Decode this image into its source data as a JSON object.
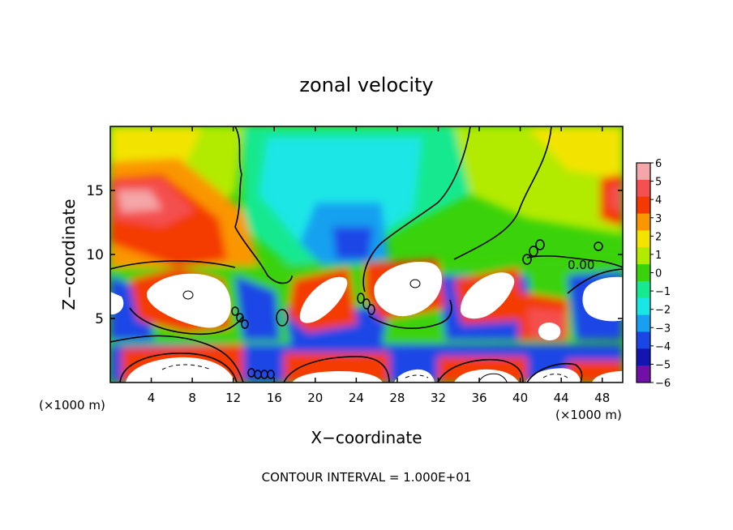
{
  "chart_data": {
    "type": "heatmap",
    "title": "zonal velocity",
    "xlabel": "X−coordinate",
    "ylabel": "Z−coordinate",
    "x_unit_left": "(×1000 m)",
    "x_unit_right": "(×1000 m)",
    "xlim": [
      0,
      50
    ],
    "ylim": [
      0,
      20
    ],
    "x_ticks": [
      4,
      8,
      12,
      16,
      20,
      24,
      28,
      32,
      36,
      40,
      44,
      48
    ],
    "y_ticks": [
      5,
      10,
      15
    ],
    "colorbar": {
      "levels": [
        6,
        5,
        4,
        3,
        2,
        1,
        0,
        -1,
        -2,
        -3,
        -4,
        -5,
        -6
      ],
      "labels": [
        "6",
        "5",
        "4",
        "3",
        "2",
        "1",
        "0",
        "−1",
        "−2",
        "−3",
        "−4",
        "−5",
        "−6"
      ],
      "colors": [
        "#f4a6a8",
        "#f45050",
        "#f43a00",
        "#fa9600",
        "#f2e400",
        "#b2ea00",
        "#3ad20a",
        "#18e890",
        "#1ae6e6",
        "#18a0f0",
        "#1a46e6",
        "#1414b0",
        "#7010a8"
      ]
    },
    "contour_label": "0.00",
    "footer": "CONTOUR INTERVAL = 1.000E+01"
  }
}
